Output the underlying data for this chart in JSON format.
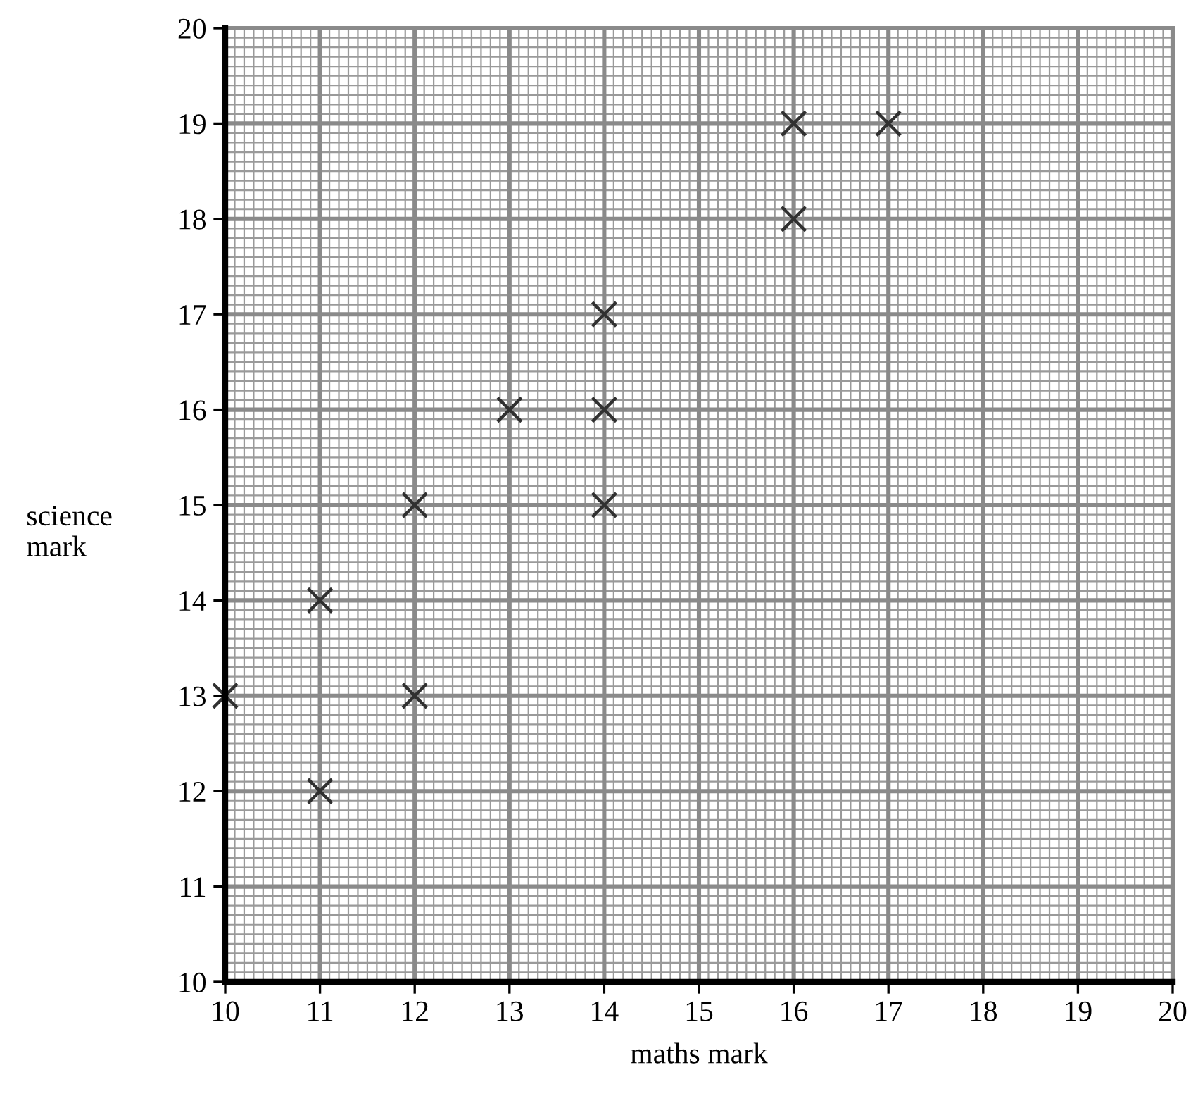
{
  "chart_data": {
    "type": "scatter",
    "xlabel": "maths mark",
    "ylabel": "science mark",
    "x": [
      10,
      11,
      11,
      12,
      12,
      13,
      14,
      14,
      14,
      16,
      16,
      17
    ],
    "values": [
      13,
      14,
      12,
      15,
      13,
      16,
      17,
      16,
      15,
      19,
      18,
      19
    ],
    "color": "#303030",
    "marker": "cross",
    "xlim": [
      10,
      20
    ],
    "ylim": [
      10,
      20
    ],
    "xticks": [
      10,
      11,
      12,
      13,
      14,
      15,
      16,
      17,
      18,
      19,
      20
    ],
    "yticks": [
      10,
      11,
      12,
      13,
      14,
      15,
      16,
      17,
      18,
      19,
      20
    ],
    "grid": true
  }
}
